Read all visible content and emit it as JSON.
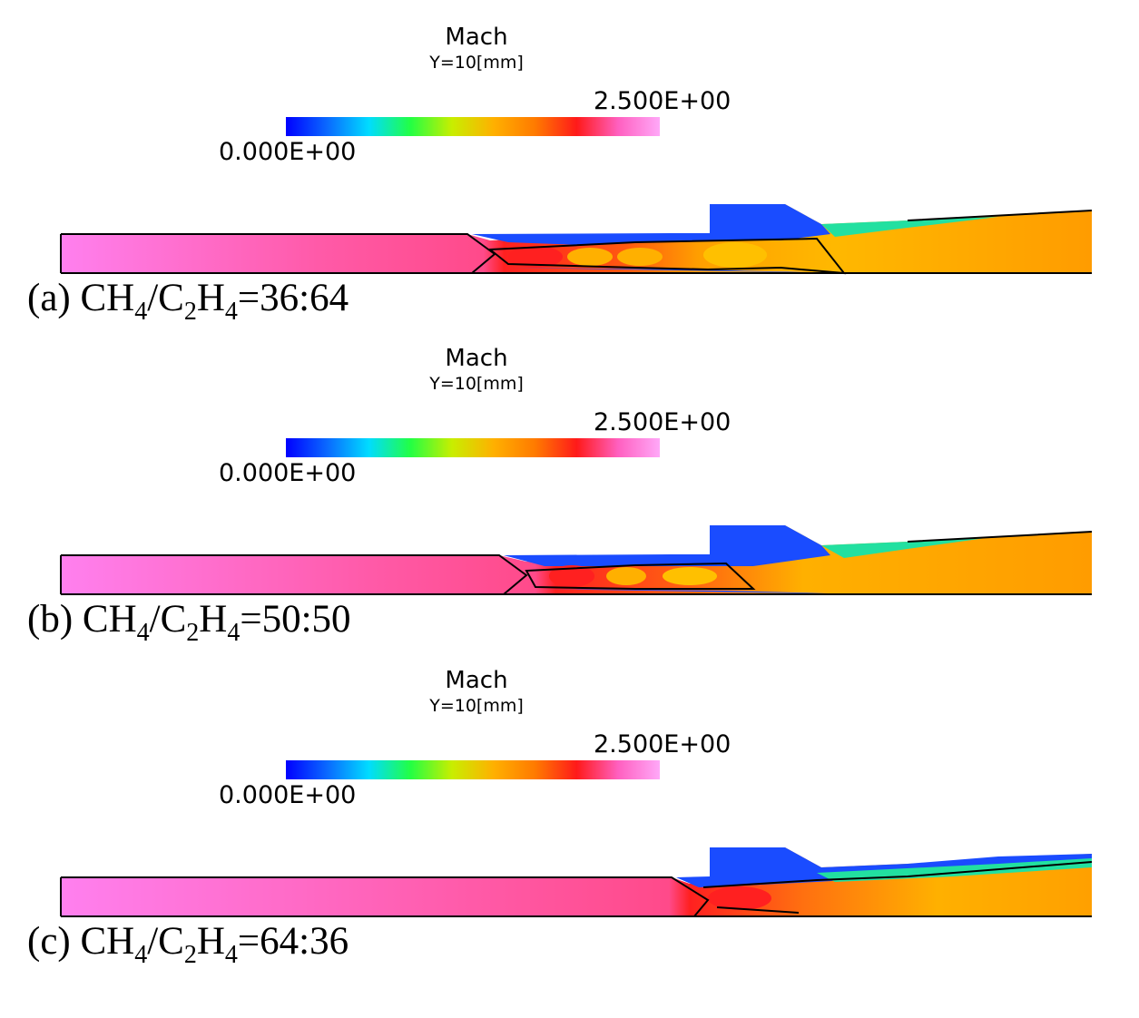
{
  "colorbar": {
    "title": "Mach",
    "subtitle": "Y=10[mm]",
    "max_label": "2.500E+00",
    "min_label": "0.000E+00",
    "stops": [
      "#0000ff",
      "#0a6aff",
      "#00dcff",
      "#22ff44",
      "#c8ee00",
      "#ffb000",
      "#ff7a00",
      "#ff1a1a",
      "#ff60c0",
      "#ffa8f8"
    ]
  },
  "panels": [
    {
      "label_prefix": "(a) CH",
      "sub1": "4",
      "mid1": "/C",
      "sub2": "2",
      "mid2": "H",
      "sub3": "4",
      "ratio": "=36:64"
    },
    {
      "label_prefix": "(b) CH",
      "sub1": "4",
      "mid1": "/C",
      "sub2": "2",
      "mid2": "H",
      "sub3": "4",
      "ratio": "=50:50"
    },
    {
      "label_prefix": "(c) CH",
      "sub1": "4",
      "mid1": "/C",
      "sub2": "2",
      "mid2": "H",
      "sub3": "4",
      "ratio": "=64:36"
    }
  ]
}
